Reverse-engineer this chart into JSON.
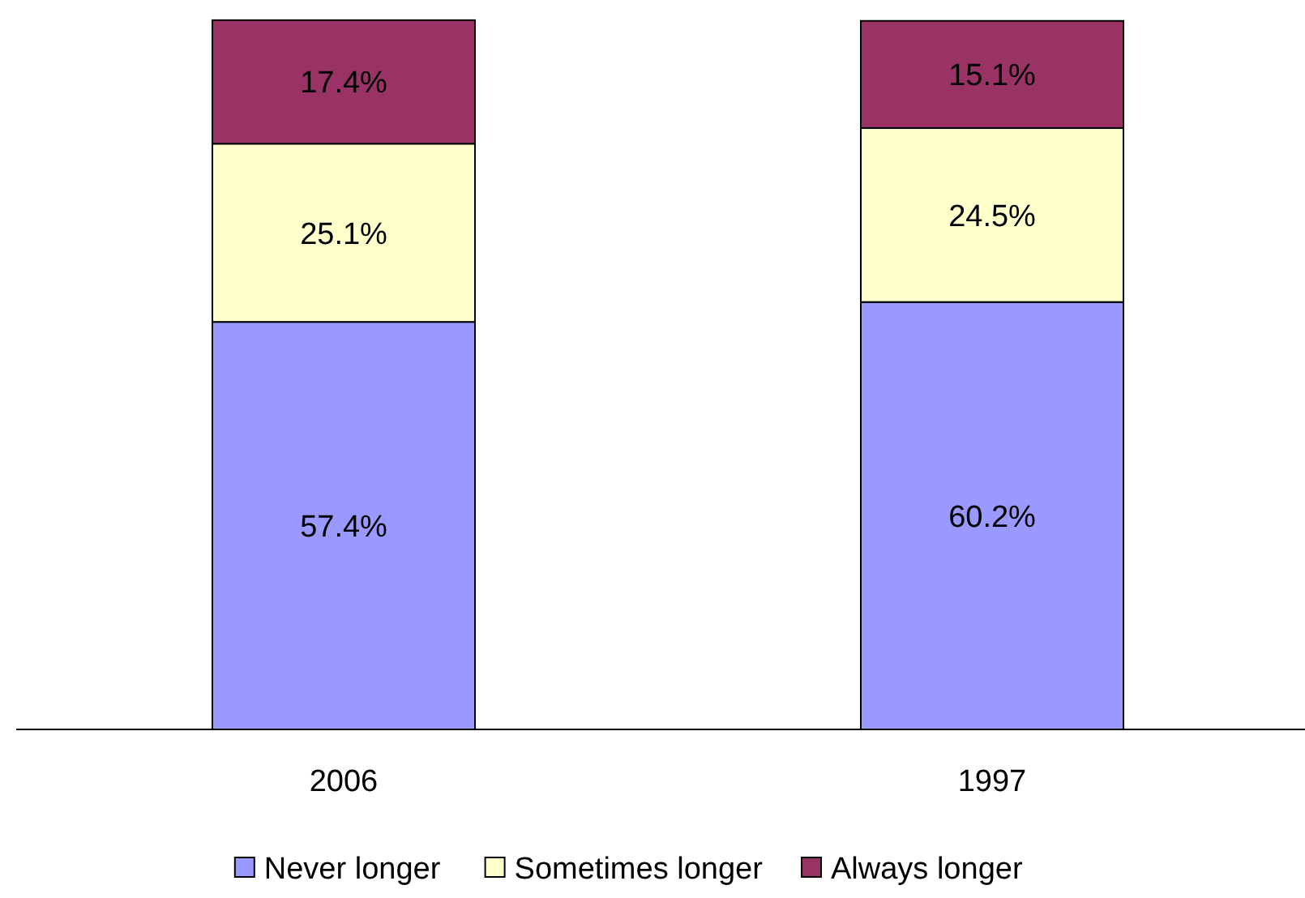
{
  "chart_data": {
    "type": "bar",
    "stacked": true,
    "categories": [
      "2006",
      "1997"
    ],
    "ylim": [
      0,
      100
    ],
    "tick_labels": "x",
    "legend": "bottom",
    "series": [
      {
        "name": "Never longer",
        "color": "#9999ff",
        "values": [
          57.4,
          60.2
        ],
        "value_labels": [
          "57.4%",
          "60.2%"
        ]
      },
      {
        "name": "Sometimes longer",
        "color": "#ffffcc",
        "values": [
          25.1,
          24.5
        ],
        "value_labels": [
          "25.1%",
          "24.5%"
        ]
      },
      {
        "name": "Always longer",
        "color": "#993366",
        "values": [
          17.4,
          15.1
        ],
        "value_labels": [
          "17.4%",
          "15.1%"
        ]
      }
    ]
  }
}
